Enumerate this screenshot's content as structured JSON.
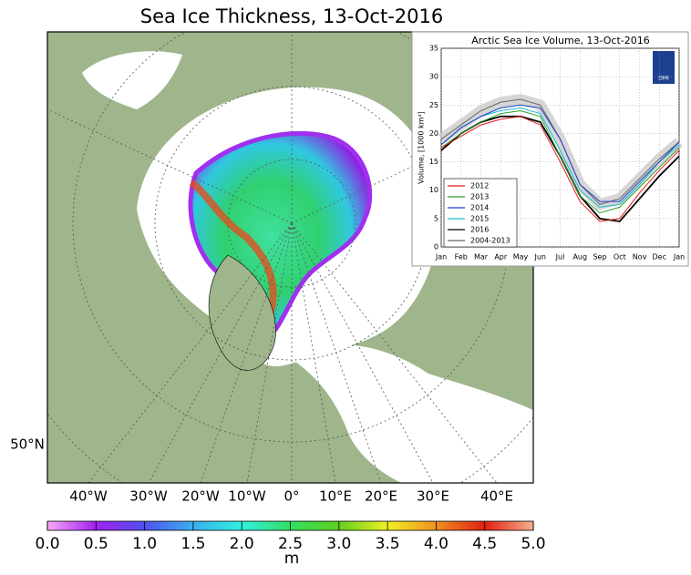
{
  "map": {
    "title": "Sea Ice Thickness, 13-Oct-2016",
    "lon_labels": [
      "40°W",
      "30°W",
      "20°W",
      "10°W",
      "0°",
      "10°E",
      "20°E",
      "30°E",
      "40°E"
    ],
    "lat_label": "50°N"
  },
  "colorbar": {
    "label": "m",
    "lim": [
      0,
      5
    ],
    "ticks": [
      {
        "value": 0,
        "label": "0.0"
      },
      {
        "value": 0.5,
        "label": "0.5"
      },
      {
        "value": 1,
        "label": "1.0"
      },
      {
        "value": 1.5,
        "label": "1.5"
      },
      {
        "value": 2,
        "label": "2.0"
      },
      {
        "value": 2.5,
        "label": "2.5"
      },
      {
        "value": 3,
        "label": "3.0"
      },
      {
        "value": 3.5,
        "label": "3.5"
      },
      {
        "value": 4,
        "label": "4.0"
      },
      {
        "value": 4.5,
        "label": "4.5"
      },
      {
        "value": 5,
        "label": "5.0"
      }
    ]
  },
  "chart_data": {
    "type": "line",
    "title": "Arctic Sea Ice Volume, 13-Oct-2016",
    "y_label": "Volume, [1000 km³]",
    "badge": "DMI",
    "categories": [
      "Jan",
      "Feb",
      "Mar",
      "Apr",
      "May",
      "Jun",
      "Jul",
      "Aug",
      "Sep",
      "Oct",
      "Nov",
      "Dec",
      "Jan"
    ],
    "ylim": [
      0,
      35
    ],
    "yticks": [
      0,
      5,
      10,
      15,
      20,
      25,
      30,
      35
    ],
    "series": [
      {
        "name": "2012",
        "color": "#e41a1c",
        "values": [
          17.5,
          19.5,
          21.5,
          22.5,
          23,
          21.5,
          15,
          8,
          4.5,
          5,
          9.5,
          13.5,
          17
        ]
      },
      {
        "name": "2013",
        "color": "#2ca02c",
        "values": [
          17.5,
          20,
          22,
          23.5,
          24,
          23,
          16,
          9,
          6,
          7,
          10.5,
          14,
          17.5
        ]
      },
      {
        "name": "2014",
        "color": "#1f3fd0",
        "values": [
          18,
          21,
          23,
          24.5,
          25,
          24.5,
          19,
          11,
          8,
          8,
          11.5,
          15,
          18.5
        ]
      },
      {
        "name": "2015",
        "color": "#17becf",
        "values": [
          18,
          21,
          23,
          24,
          24.5,
          23.5,
          17,
          10,
          7,
          7.5,
          11,
          15,
          18
        ]
      },
      {
        "name": "2016",
        "color": "#000000",
        "values": [
          17,
          20,
          22,
          23,
          23,
          22,
          16,
          9,
          5,
          4.5,
          8.5,
          12.5,
          16
        ]
      },
      {
        "name": "2004-2013",
        "color": "#666666",
        "values": [
          19,
          21.5,
          24,
          25.5,
          26,
          25,
          19,
          11,
          7.5,
          8.5,
          12,
          15.5,
          18.5
        ]
      }
    ]
  }
}
